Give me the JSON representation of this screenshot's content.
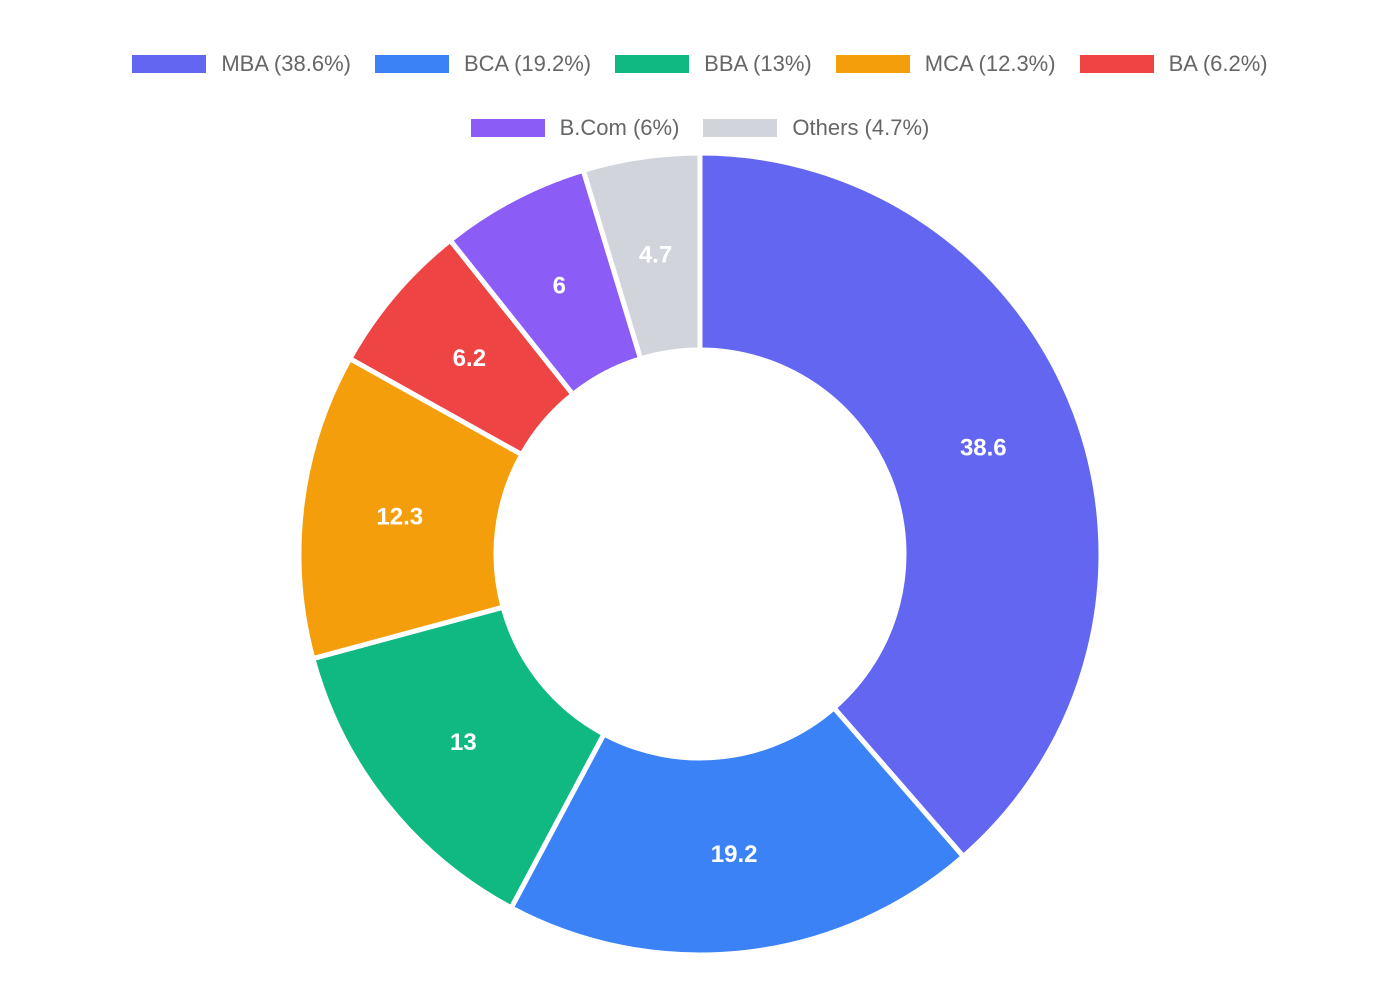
{
  "chart_data": {
    "type": "pie",
    "variant": "donut",
    "title": "",
    "legend_position": "top",
    "slices": [
      {
        "label": "MBA",
        "value": 38.6,
        "legend": "MBA (38.6%)",
        "color": "#6366f1"
      },
      {
        "label": "BCA",
        "value": 19.2,
        "legend": "BCA (19.2%)",
        "color": "#3b82f6"
      },
      {
        "label": "BBA",
        "value": 13,
        "legend": "BBA (13%)",
        "color": "#10b981"
      },
      {
        "label": "MCA",
        "value": 12.3,
        "legend": "MCA (12.3%)",
        "color": "#f59e0b"
      },
      {
        "label": "BA",
        "value": 6.2,
        "legend": "BA (6.2%)",
        "color": "#ef4444"
      },
      {
        "label": "B.Com",
        "value": 6,
        "legend": "B.Com (6%)",
        "color": "#8b5cf6"
      },
      {
        "label": "Others",
        "value": 4.7,
        "legend": "Others (4.7%)",
        "color": "#d1d5db"
      }
    ],
    "value_labels": [
      "38.6",
      "19.2",
      "13",
      "12.3",
      "6.2",
      "6",
      "4.7"
    ]
  }
}
